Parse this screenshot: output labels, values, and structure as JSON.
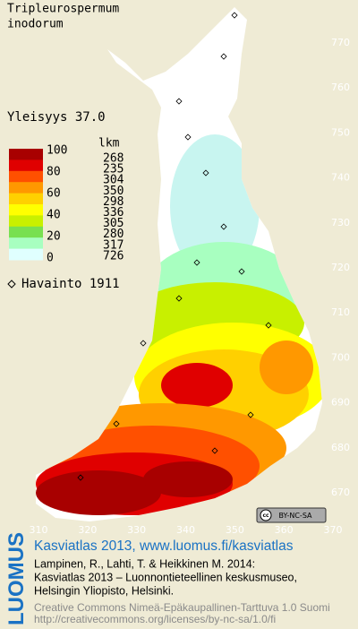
{
  "map": {
    "title": [
      "Tripleurospermum",
      "inodorum"
    ],
    "frequency": "Yleisyys  37.0",
    "legend": {
      "scale_labels": [
        100,
        80,
        60,
        40,
        20,
        0
      ],
      "count_header": "lkm",
      "counts": [
        268,
        235,
        304,
        350,
        298,
        336,
        305,
        280,
        317,
        726
      ],
      "colors": [
        "#a80000",
        "#e00000",
        "#ff5000",
        "#ff9800",
        "#ffd000",
        "#ffff00",
        "#c8f000",
        "#78e050",
        "#a8ffc0",
        "#e0ffff"
      ]
    },
    "observations": "Havainto 1911",
    "northing_ticks": [
      770,
      760,
      750,
      740,
      730,
      720,
      710,
      700,
      690,
      680,
      670
    ],
    "easting_ticks": [
      310,
      320,
      330,
      340,
      350,
      360,
      370
    ],
    "license_badge": "BY-NC-SA",
    "footer": {
      "brand": "LUOMUS",
      "headline": "Kasviatlas 2013, www.luomus.fi/kasviatlas",
      "citation": [
        "Lampinen, R., Lahti, T. & Heikkinen M. 2014:",
        "Kasviatlas 2013 – Luonnontieteellinen keskusmuseo,",
        "Helsingin Yliopisto, Helsinki."
      ],
      "license": [
        "Creative Commons Nimeä-Epäkaupallinen-Tarttuva 1.0 Suomi",
        "http://creativecommons.org/licenses/by-nc-sa/1.0/fi"
      ]
    }
  }
}
